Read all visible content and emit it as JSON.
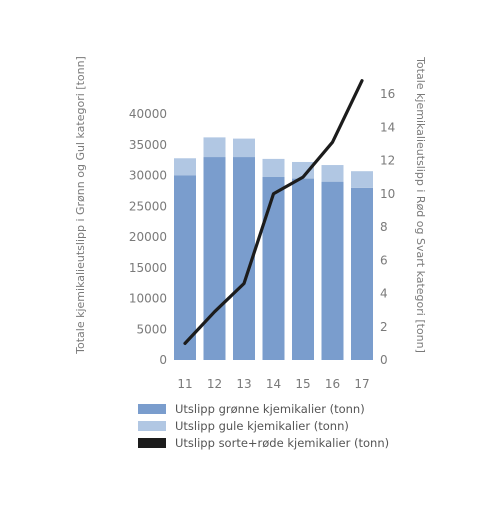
{
  "chart_data": {
    "type": "bar",
    "categories": [
      "11",
      "12",
      "13",
      "14",
      "15",
      "16",
      "17"
    ],
    "series": [
      {
        "name": "Utslipp grønne kjemikalier (tonn)",
        "type": "stacked-bar",
        "axis": "left",
        "values": [
          30000,
          33000,
          33000,
          29800,
          29500,
          29000,
          28000
        ]
      },
      {
        "name": "Utslipp gule kjemikalier (tonn)",
        "type": "stacked-bar",
        "axis": "left",
        "values": [
          2800,
          3200,
          3000,
          2900,
          2700,
          2700,
          2700
        ]
      },
      {
        "name": "Utslipp sorte+røde kjemikalier (tonn)",
        "type": "line",
        "axis": "right",
        "values": [
          1.0,
          2.9,
          4.6,
          10.0,
          11.0,
          13.1,
          16.8
        ]
      }
    ],
    "ylabel": "Totale kjemikalieutslipp i Grønn og Gul kategori [tonn]",
    "y2label": "Totale kjemikalieutslipp i Rød og Svart kategori [tonn]",
    "ylim": [
      0,
      40000
    ],
    "y2lim": [
      0,
      16
    ],
    "yticks": [
      "0",
      "5000",
      "10000",
      "15000",
      "20000",
      "25000",
      "30000",
      "35000",
      "40000"
    ],
    "y2ticks": [
      "0",
      "2",
      "4",
      "6",
      "8",
      "10",
      "12",
      "14",
      "16"
    ],
    "grid": false,
    "legend_position": "bottom",
    "colors": {
      "green_bar": "#7a9dcd",
      "yellow_bar": "#b1c7e3",
      "line": "#1c1c1c"
    }
  }
}
